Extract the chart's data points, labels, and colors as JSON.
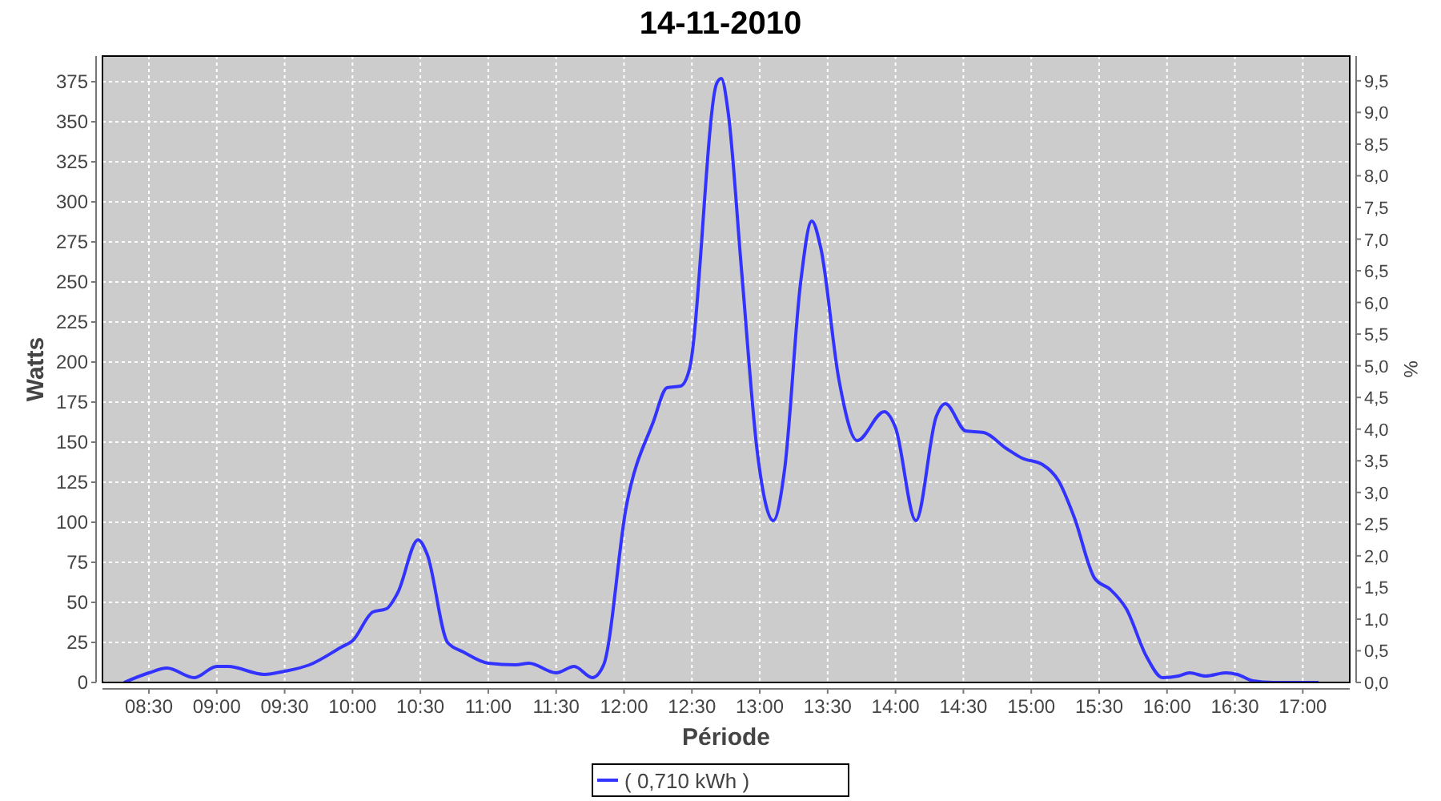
{
  "chart_data": {
    "type": "line",
    "title": "14-11-2010",
    "xlabel": "Période",
    "ylabel": "Watts",
    "y2label": "%",
    "x": [
      8.317,
      8.5,
      8.633,
      8.833,
      9,
      9.083,
      9.35,
      9.5,
      9.683,
      9.917,
      10,
      10.15,
      10.25,
      10.333,
      10.483,
      10.55,
      10.7,
      10.817,
      11,
      11.2,
      11.3,
      11.5,
      11.633,
      11.767,
      11.85,
      12.017,
      12.217,
      12.317,
      12.417,
      12.483,
      12.683,
      12.717,
      12.767,
      12.867,
      12.983,
      13.1,
      13.183,
      13.3,
      13.383,
      13.45,
      13.583,
      13.717,
      13.917,
      14,
      14.15,
      14.3,
      14.367,
      14.517,
      14.65,
      14.817,
      14.933,
      15.083,
      15.2,
      15.317,
      15.467,
      15.583,
      15.7,
      15.85,
      15.967,
      16.083,
      16.167,
      16.283,
      16.433,
      16.517,
      16.633,
      16.783,
      17.117
    ],
    "series": [
      {
        "name": "( 0,710 kWh )",
        "color": "#3333ff",
        "values": [
          0,
          6,
          9,
          3,
          10,
          10,
          5,
          7,
          11,
          22,
          26,
          44,
          46,
          56,
          89,
          80,
          25,
          19,
          12,
          11,
          12,
          6,
          10,
          3,
          11,
          110,
          163,
          184,
          185,
          196,
          374,
          377,
          356,
          256,
          143,
          101,
          133,
          249,
          288,
          271,
          189,
          151,
          169,
          159,
          101,
          166,
          174,
          157,
          156,
          146,
          140,
          136,
          126,
          103,
          65,
          58,
          46,
          16,
          3,
          4,
          6,
          4,
          6,
          5,
          1,
          0,
          0
        ]
      }
    ],
    "xlim": [
      8.158,
      17.346
    ],
    "xticks": [
      {
        "value": 8.5,
        "label": "08:30"
      },
      {
        "value": 9,
        "label": "09:00"
      },
      {
        "value": 9.5,
        "label": "09:30"
      },
      {
        "value": 10,
        "label": "10:00"
      },
      {
        "value": 10.5,
        "label": "10:30"
      },
      {
        "value": 11,
        "label": "11:00"
      },
      {
        "value": 11.5,
        "label": "11:30"
      },
      {
        "value": 12,
        "label": "12:00"
      },
      {
        "value": 12.5,
        "label": "12:30"
      },
      {
        "value": 13,
        "label": "13:00"
      },
      {
        "value": 13.5,
        "label": "13:30"
      },
      {
        "value": 14,
        "label": "14:00"
      },
      {
        "value": 14.5,
        "label": "14:30"
      },
      {
        "value": 15,
        "label": "15:00"
      },
      {
        "value": 15.5,
        "label": "15:30"
      },
      {
        "value": 16,
        "label": "16:00"
      },
      {
        "value": 16.5,
        "label": "16:30"
      },
      {
        "value": 17,
        "label": "17:00"
      }
    ],
    "ylim": [
      0,
      391
    ],
    "yticks": [
      0,
      25,
      50,
      75,
      100,
      125,
      150,
      175,
      200,
      225,
      250,
      275,
      300,
      325,
      350,
      375
    ],
    "y2lim": [
      0,
      9.89
    ],
    "y2ticks": [
      {
        "value": 0,
        "label": "0,0"
      },
      {
        "value": 0.5,
        "label": "0,5"
      },
      {
        "value": 1,
        "label": "1,0"
      },
      {
        "value": 1.5,
        "label": "1,5"
      },
      {
        "value": 2,
        "label": "2,0"
      },
      {
        "value": 2.5,
        "label": "2,5"
      },
      {
        "value": 3,
        "label": "3,0"
      },
      {
        "value": 3.5,
        "label": "3,5"
      },
      {
        "value": 4,
        "label": "4,0"
      },
      {
        "value": 4.5,
        "label": "4,5"
      },
      {
        "value": 5,
        "label": "5,0"
      },
      {
        "value": 5.5,
        "label": "5,5"
      },
      {
        "value": 6,
        "label": "6,0"
      },
      {
        "value": 6.5,
        "label": "6,5"
      },
      {
        "value": 7,
        "label": "7,0"
      },
      {
        "value": 7.5,
        "label": "7,5"
      },
      {
        "value": 8,
        "label": "8,0"
      },
      {
        "value": 8.5,
        "label": "8,5"
      },
      {
        "value": 9,
        "label": "9,0"
      },
      {
        "value": 9.5,
        "label": "9,5"
      }
    ],
    "grid": true,
    "legend": "bottom",
    "marker": "none",
    "line_style": "solid"
  }
}
